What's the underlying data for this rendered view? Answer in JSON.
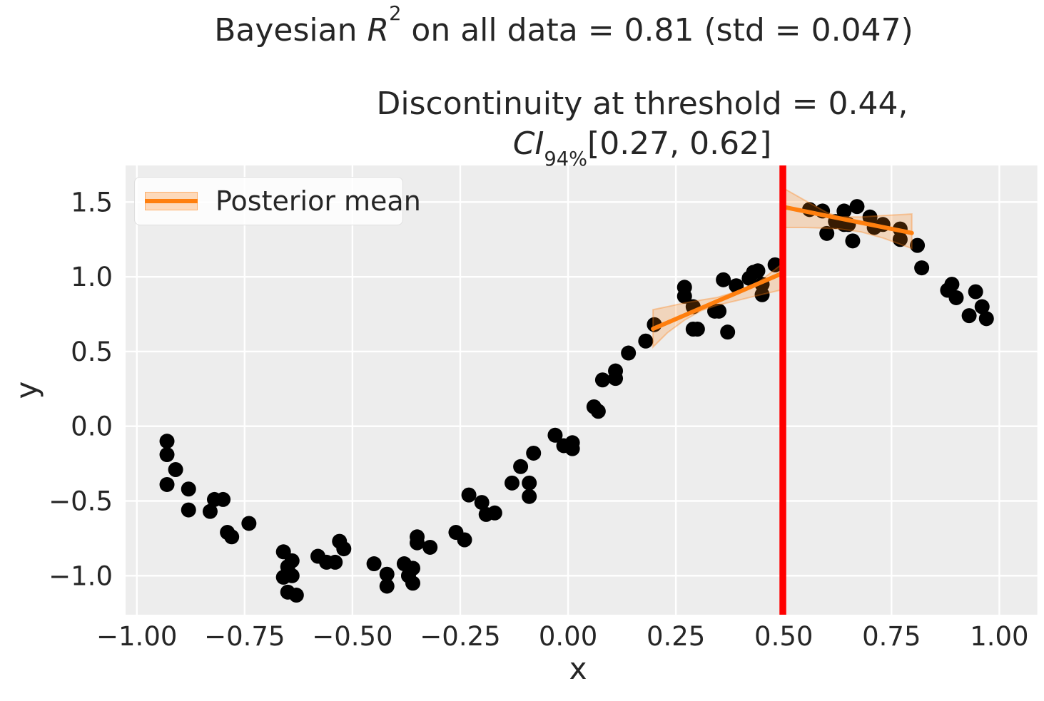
{
  "figure": {
    "title": {
      "prefix": "Bayesian ",
      "variable": "R",
      "superscript": "2",
      "suffix": " on all data = 0.81 (std = 0.047)"
    },
    "subtitle": {
      "line1": "Discontinuity at threshold = 0.44,",
      "ci_label": "CI",
      "ci_subscript": "94%",
      "ci_interval": "[0.27, 0.62]"
    }
  },
  "legend": {
    "label": "Posterior mean"
  },
  "chart_data": {
    "type": "scatter",
    "title": "Bayesian R2 on all data = 0.81 (std = 0.047)",
    "subtitle": "Discontinuity at threshold = 0.44, CI 94% [0.27, 0.62]",
    "stats": {
      "bayes_r2": 0.81,
      "bayes_r2_std": 0.047,
      "threshold": 0.44,
      "ci_94": [
        0.27,
        0.62
      ]
    },
    "xlabel": "x",
    "ylabel": "y",
    "xlim": [
      -1.026,
      1.088
    ],
    "ylim": [
      -1.261,
      1.745
    ],
    "grid": true,
    "x_ticks": {
      "values": [
        -1.0,
        -0.75,
        -0.5,
        -0.25,
        0.0,
        0.25,
        0.5,
        0.75,
        1.0
      ],
      "labels": [
        "−1.00",
        "−0.75",
        "−0.50",
        "−0.25",
        "0.00",
        "0.25",
        "0.50",
        "0.75",
        "1.00"
      ]
    },
    "y_ticks": {
      "values": [
        1.5,
        1.0,
        0.5,
        0.0,
        -0.5,
        -1.0
      ],
      "labels": [
        "1.5",
        "1.0",
        "0.5",
        "0.0",
        "−0.5",
        "−1.0"
      ]
    },
    "points": [
      [
        -0.93,
        -0.1
      ],
      [
        -0.93,
        -0.19
      ],
      [
        -0.91,
        -0.29
      ],
      [
        -0.93,
        -0.39
      ],
      [
        -0.88,
        -0.42
      ],
      [
        -0.88,
        -0.56
      ],
      [
        -0.82,
        -0.49
      ],
      [
        -0.8,
        -0.49
      ],
      [
        -0.83,
        -0.57
      ],
      [
        -0.74,
        -0.65
      ],
      [
        -0.79,
        -0.71
      ],
      [
        -0.78,
        -0.74
      ],
      [
        -0.66,
        -0.84
      ],
      [
        -0.64,
        -0.9
      ],
      [
        -0.65,
        -0.94
      ],
      [
        -0.66,
        -1.01
      ],
      [
        -0.64,
        -1.0
      ],
      [
        -0.65,
        -1.11
      ],
      [
        -0.63,
        -1.13
      ],
      [
        -0.58,
        -0.87
      ],
      [
        -0.56,
        -0.91
      ],
      [
        -0.54,
        -0.91
      ],
      [
        -0.53,
        -0.77
      ],
      [
        -0.52,
        -0.82
      ],
      [
        -0.45,
        -0.92
      ],
      [
        -0.42,
        -0.99
      ],
      [
        -0.42,
        -1.07
      ],
      [
        -0.38,
        -0.92
      ],
      [
        -0.36,
        -0.95
      ],
      [
        -0.37,
        -1.0
      ],
      [
        -0.36,
        -1.05
      ],
      [
        -0.35,
        -0.74
      ],
      [
        -0.35,
        -0.78
      ],
      [
        -0.32,
        -0.81
      ],
      [
        -0.26,
        -0.71
      ],
      [
        -0.24,
        -0.76
      ],
      [
        -0.23,
        -0.46
      ],
      [
        -0.2,
        -0.51
      ],
      [
        -0.19,
        -0.59
      ],
      [
        -0.17,
        -0.58
      ],
      [
        -0.13,
        -0.38
      ],
      [
        -0.09,
        -0.38
      ],
      [
        -0.09,
        -0.47
      ],
      [
        -0.11,
        -0.27
      ],
      [
        -0.08,
        -0.18
      ],
      [
        -0.03,
        -0.06
      ],
      [
        -0.01,
        -0.13
      ],
      [
        0.01,
        -0.11
      ],
      [
        0.01,
        -0.15
      ],
      [
        0.06,
        0.13
      ],
      [
        0.07,
        0.1
      ],
      [
        0.08,
        0.31
      ],
      [
        0.11,
        0.37
      ],
      [
        0.11,
        0.32
      ],
      [
        0.14,
        0.49
      ],
      [
        0.18,
        0.57
      ],
      [
        0.2,
        0.68
      ],
      [
        0.27,
        0.93
      ],
      [
        0.27,
        0.87
      ],
      [
        0.29,
        0.8
      ],
      [
        0.29,
        0.65
      ],
      [
        0.3,
        0.65
      ],
      [
        0.34,
        0.77
      ],
      [
        0.35,
        0.77
      ],
      [
        0.36,
        0.98
      ],
      [
        0.39,
        0.94
      ],
      [
        0.37,
        0.63
      ],
      [
        0.42,
        0.99
      ],
      [
        0.43,
        1.03
      ],
      [
        0.44,
        1.04
      ],
      [
        0.45,
        0.95
      ],
      [
        0.45,
        0.88
      ],
      [
        0.48,
        1.08
      ],
      [
        0.56,
        1.45
      ],
      [
        0.59,
        1.44
      ],
      [
        0.6,
        1.29
      ],
      [
        0.62,
        1.37
      ],
      [
        0.64,
        1.35
      ],
      [
        0.65,
        1.35
      ],
      [
        0.64,
        1.44
      ],
      [
        0.66,
        1.24
      ],
      [
        0.67,
        1.47
      ],
      [
        0.7,
        1.4
      ],
      [
        0.71,
        1.33
      ],
      [
        0.73,
        1.35
      ],
      [
        0.77,
        1.32
      ],
      [
        0.77,
        1.25
      ],
      [
        0.81,
        1.21
      ],
      [
        0.82,
        1.06
      ],
      [
        0.88,
        0.91
      ],
      [
        0.89,
        0.95
      ],
      [
        0.9,
        0.86
      ],
      [
        0.945,
        0.9
      ],
      [
        0.93,
        0.74
      ],
      [
        0.96,
        0.8
      ],
      [
        0.97,
        0.72
      ]
    ],
    "posterior_mean_segments": [
      {
        "x": [
          0.197,
          0.498
        ],
        "y": [
          0.652,
          1.025
        ]
      },
      {
        "x": [
          0.498,
          0.797
        ],
        "y": [
          1.468,
          1.293
        ]
      }
    ],
    "credible_bands": [
      {
        "x": [
          0.197,
          0.23,
          0.27,
          0.31,
          0.346,
          0.39,
          0.44,
          0.498
        ],
        "top": [
          0.78,
          0.8,
          0.825,
          0.845,
          0.862,
          0.9,
          0.96,
          1.09
        ],
        "bottom": [
          0.53,
          0.625,
          0.71,
          0.775,
          0.81,
          0.84,
          0.875,
          0.915
        ]
      },
      {
        "x": [
          0.498,
          0.55,
          0.6,
          0.63,
          0.68,
          0.73,
          0.797
        ],
        "top": [
          1.595,
          1.51,
          1.43,
          1.4,
          1.4,
          1.41,
          1.42
        ],
        "bottom": [
          1.33,
          1.33,
          1.325,
          1.32,
          1.3,
          1.26,
          1.19
        ]
      }
    ],
    "threshold_line": {
      "x": 0.498
    },
    "colors": {
      "background": "#ededed",
      "grid": "#ffffff",
      "points": "#000000",
      "posterior_mean": "#ff7f0e",
      "band": "#ff7f0e",
      "threshold": "#ff0000",
      "text": "#262626"
    }
  }
}
